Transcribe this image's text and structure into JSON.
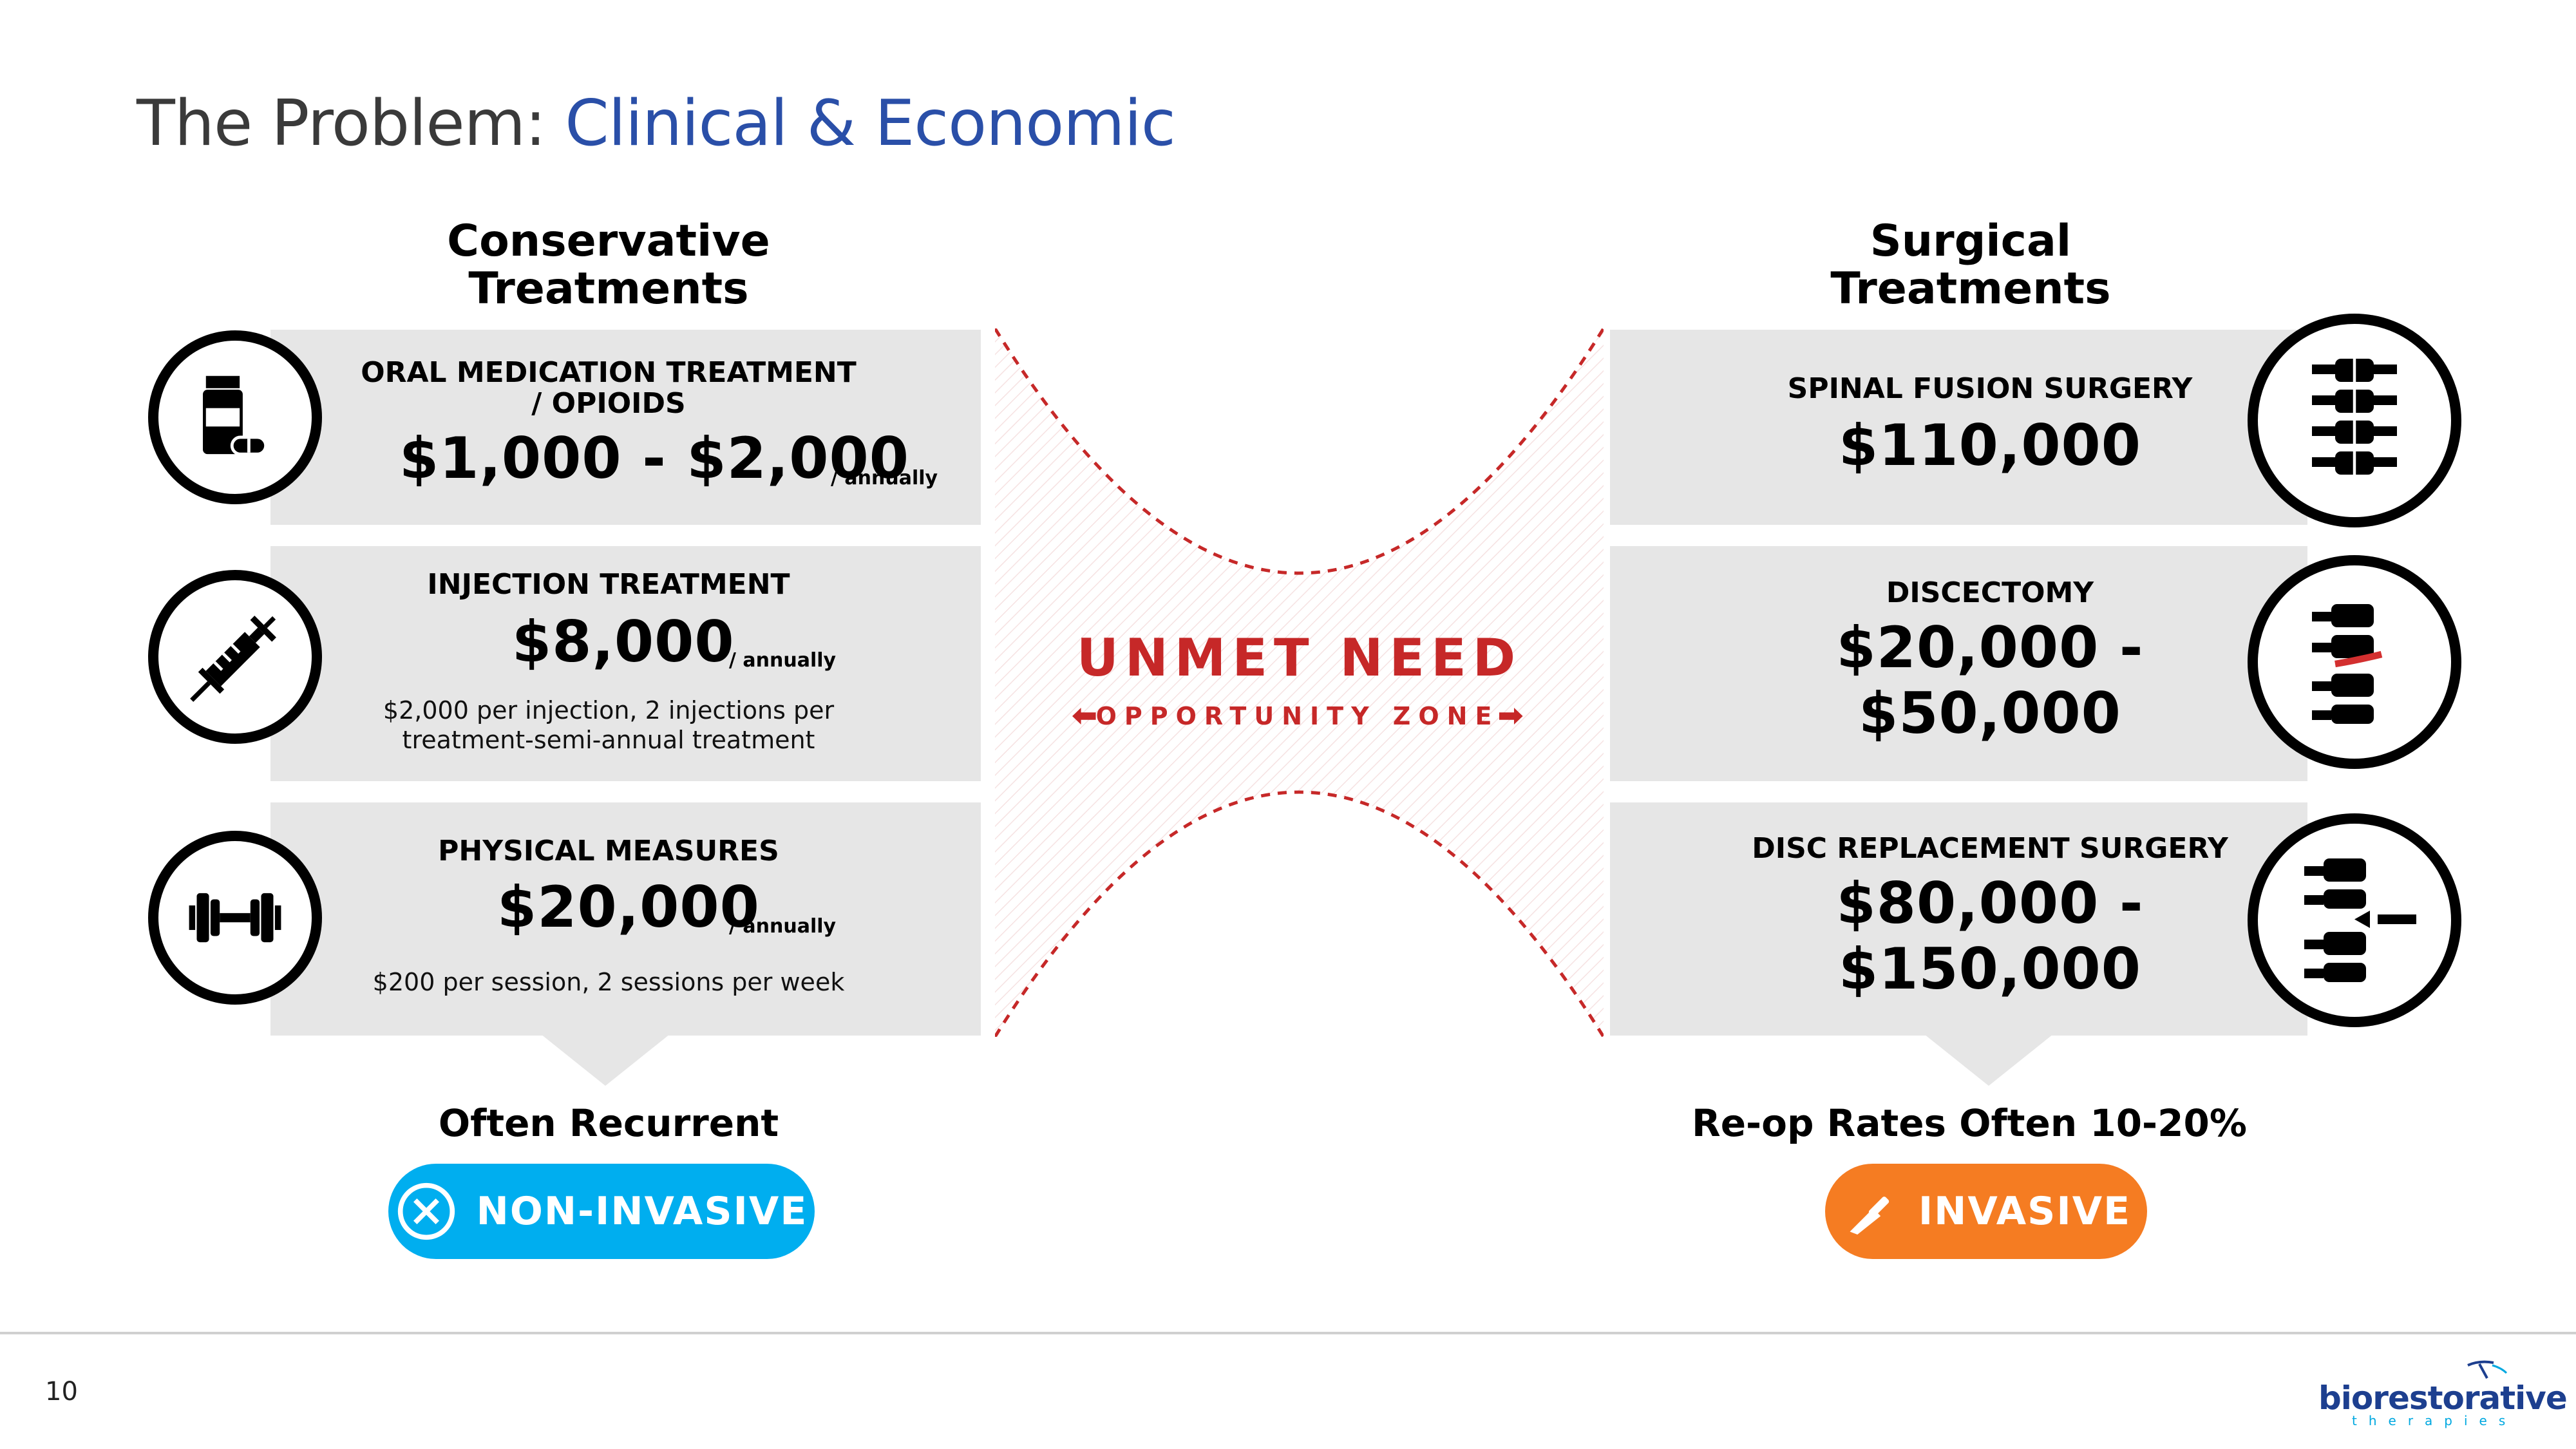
{
  "title": {
    "lead": "The Problem: ",
    "accent": "Clinical & Economic"
  },
  "colors": {
    "accent_blue": "#2a4fa8",
    "unmet_red": "#c62828",
    "non_invasive_blue": "#00aeef",
    "invasive_orange": "#f57c22",
    "card_gray": "#e6e6e6"
  },
  "conservative": {
    "heading_line1": "Conservative",
    "heading_line2": "Treatments",
    "cards": [
      {
        "title_line1": "ORAL MEDICATION TREATMENT",
        "title_line2": "/ OPIOIDS",
        "price": "$1,000 - $2,000",
        "unit": "/ annually",
        "icon": "pill-bottle-icon"
      },
      {
        "title_line1": "INJECTION TREATMENT",
        "price": "$8,000",
        "unit": "/ annually",
        "note_line1": "$2,000 per injection, 2 injections per",
        "note_line2": "treatment-semi-annual treatment",
        "icon": "syringe-icon"
      },
      {
        "title_line1": "PHYSICAL MEASURES",
        "price": "$20,000",
        "unit": "/ annually",
        "note_line1": "$200 per session, 2 sessions per week",
        "icon": "dumbbell-icon"
      }
    ],
    "footer_label": "Often Recurrent",
    "pill_label": "NON-INVASIVE",
    "pill_icon": "x-circle-icon"
  },
  "surgical": {
    "heading_line1": "Surgical",
    "heading_line2": "Treatments",
    "cards": [
      {
        "title_line1": "SPINAL FUSION SURGERY",
        "price_line1": "$110,000",
        "icon": "spine-icon"
      },
      {
        "title_line1": "DISCECTOMY",
        "price_line1": "$20,000 -",
        "price_line2": "$50,000",
        "icon": "vertebrae-disc-icon"
      },
      {
        "title_line1": "DISC REPLACEMENT SURGERY",
        "price_line1": "$80,000 -",
        "price_line2": "$150,000",
        "icon": "disc-replacement-icon"
      }
    ],
    "footer_label": "Re-op Rates Often 10-20%",
    "pill_label": "INVASIVE",
    "pill_icon": "scalpel-icon"
  },
  "unmet": {
    "title": "UNMET NEED",
    "subtitle": "OPPORTUNITY ZONE"
  },
  "footer": {
    "page_number": "10",
    "logo_main": "biorestorative",
    "logo_sub": "therapies"
  }
}
